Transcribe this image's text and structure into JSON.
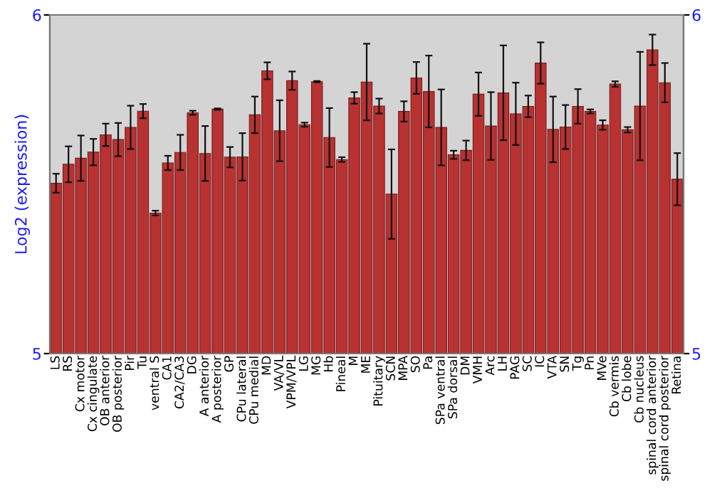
{
  "chart_data": {
    "type": "bar",
    "ylabel": "Log2 (expression)",
    "categories": [
      "LS",
      "RS",
      "Cx motor",
      "Cx cingulate",
      "OB anterior",
      "OB posterior",
      "Pir",
      "Tu",
      "ventral S",
      "CA1",
      "CA2/CA3",
      "DG",
      "A anterior",
      "A posterior",
      "GP",
      "CPu lateral",
      "CPu medial",
      "MD",
      "VA/VL",
      "VPM/VPL",
      "LG",
      "MG",
      "Hb",
      "Pineal",
      "M",
      "ME",
      "Pituitary",
      "SCN",
      "MPA",
      "SO",
      "Pa",
      "SPa ventral",
      "SPa dorsal",
      "DM",
      "VMH",
      "Arc",
      "LH",
      "PAG",
      "SC",
      "IC",
      "VTA",
      "SN",
      "Tg",
      "Pn",
      "MVe",
      "Cb vermis",
      "Cb lobe",
      "Cb nucleus",
      "spinal cord anterior",
      "spinal cord posterior",
      "Retina"
    ],
    "values": [
      5.503,
      5.559,
      5.577,
      5.595,
      5.646,
      5.632,
      5.668,
      5.716,
      5.415,
      5.563,
      5.594,
      5.711,
      5.591,
      5.722,
      5.58,
      5.581,
      5.705,
      5.835,
      5.658,
      5.806,
      5.676,
      5.803,
      5.638,
      5.573,
      5.755,
      5.802,
      5.731,
      5.471,
      5.715,
      5.814,
      5.774,
      5.668,
      5.587,
      5.6,
      5.766,
      5.672,
      5.77,
      5.708,
      5.73,
      5.858,
      5.662,
      5.669,
      5.73,
      5.715,
      5.675,
      5.796,
      5.661,
      5.731,
      5.897,
      5.8,
      5.515
    ],
    "errors": [
      0.028,
      0.053,
      0.067,
      0.039,
      0.033,
      0.049,
      0.064,
      0.021,
      0.007,
      0.021,
      0.052,
      0.006,
      0.081,
      0.002,
      0.03,
      0.07,
      0.054,
      0.025,
      0.09,
      0.027,
      0.006,
      0.002,
      0.087,
      0.007,
      0.017,
      0.113,
      0.022,
      0.132,
      0.03,
      0.047,
      0.106,
      0.112,
      0.012,
      0.029,
      0.064,
      0.1,
      0.14,
      0.092,
      0.032,
      0.061,
      0.097,
      0.065,
      0.051,
      0.006,
      0.014,
      0.008,
      0.008,
      0.16,
      0.045,
      0.058,
      0.077
    ],
    "color": "#b83232",
    "ylim": [
      5,
      6
    ],
    "yticks": [
      5,
      6
    ],
    "y2lim": [
      5,
      6
    ],
    "y2ticks": [
      5,
      6
    ],
    "grid": false,
    "legend": false
  }
}
